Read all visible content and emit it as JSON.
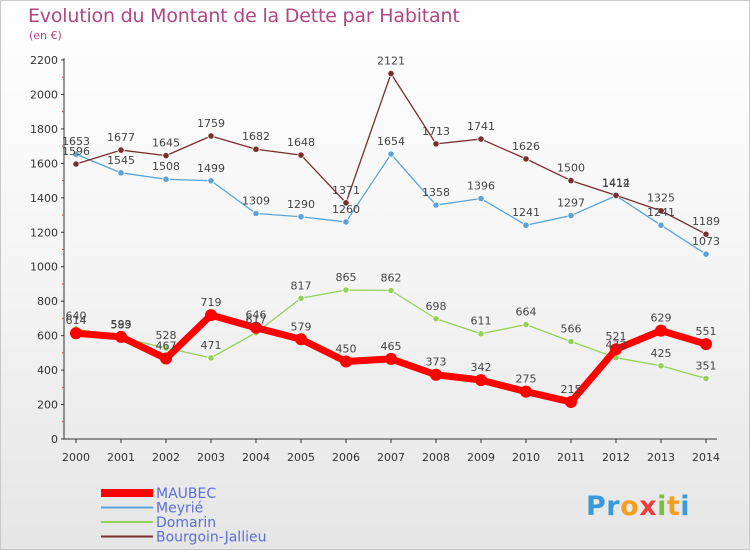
{
  "title": "Evolution du Montant de la Dette par Habitant",
  "subtitle": "(en €)",
  "logo_text": "Proxiti",
  "chart_data": {
    "type": "line",
    "x": [
      "2000",
      "2001",
      "2002",
      "2003",
      "2004",
      "2005",
      "2006",
      "2007",
      "2008",
      "2009",
      "2010",
      "2011",
      "2012",
      "2013",
      "2014"
    ],
    "ylim": [
      0,
      2200
    ],
    "yticks": [
      0,
      200,
      400,
      600,
      800,
      1000,
      1200,
      1400,
      1600,
      1800,
      2000,
      2200
    ],
    "grid": false,
    "legend_position": "bottom-left",
    "series": [
      {
        "name": "MAUBEC",
        "color": "#ff0000",
        "emphasis": true,
        "values": [
          614,
          593,
          467,
          719,
          646,
          579,
          450,
          465,
          373,
          342,
          275,
          215,
          521,
          629,
          551
        ],
        "labels": [
          "614",
          "593",
          "467",
          "719",
          "646",
          "579",
          "450",
          "465",
          "373",
          "342",
          "275",
          "215",
          "521",
          "629",
          "551"
        ]
      },
      {
        "name": "Meyrié",
        "color": "#5ba3d6",
        "emphasis": false,
        "values": [
          1653,
          1545,
          1508,
          1499,
          1309,
          1290,
          1260,
          1654,
          1358,
          1396,
          1241,
          1297,
          1412,
          1241,
          1073
        ],
        "labels": [
          "1653",
          "1545",
          "1508",
          "1499",
          "1309",
          "1290",
          "1260",
          "1654",
          "1358",
          "1396",
          "1241",
          "1297",
          "1412",
          "1241",
          "1073"
        ]
      },
      {
        "name": "Domarin",
        "color": "#94d05a",
        "emphasis": false,
        "values": [
          640,
          589,
          528,
          471,
          617,
          817,
          865,
          862,
          698,
          611,
          664,
          566,
          472,
          425,
          351
        ],
        "labels": [
          "640",
          "589",
          "528",
          "471",
          "617",
          "817",
          "865",
          "862",
          "698",
          "611",
          "664",
          "566",
          "472",
          "425",
          "351"
        ]
      },
      {
        "name": "Bourgoin-Jallieu",
        "color": "#7a2d2d",
        "emphasis": false,
        "values": [
          1596,
          1677,
          1645,
          1759,
          1682,
          1648,
          1371,
          2121,
          1713,
          1741,
          1626,
          1500,
          1414,
          1325,
          1189
        ],
        "labels": [
          "1596",
          "1677",
          "1645",
          "1759",
          "1682",
          "1648",
          "1371",
          "2121",
          "1713",
          "1741",
          "1626",
          "1500",
          "1414",
          "1325",
          "1189"
        ]
      }
    ]
  }
}
